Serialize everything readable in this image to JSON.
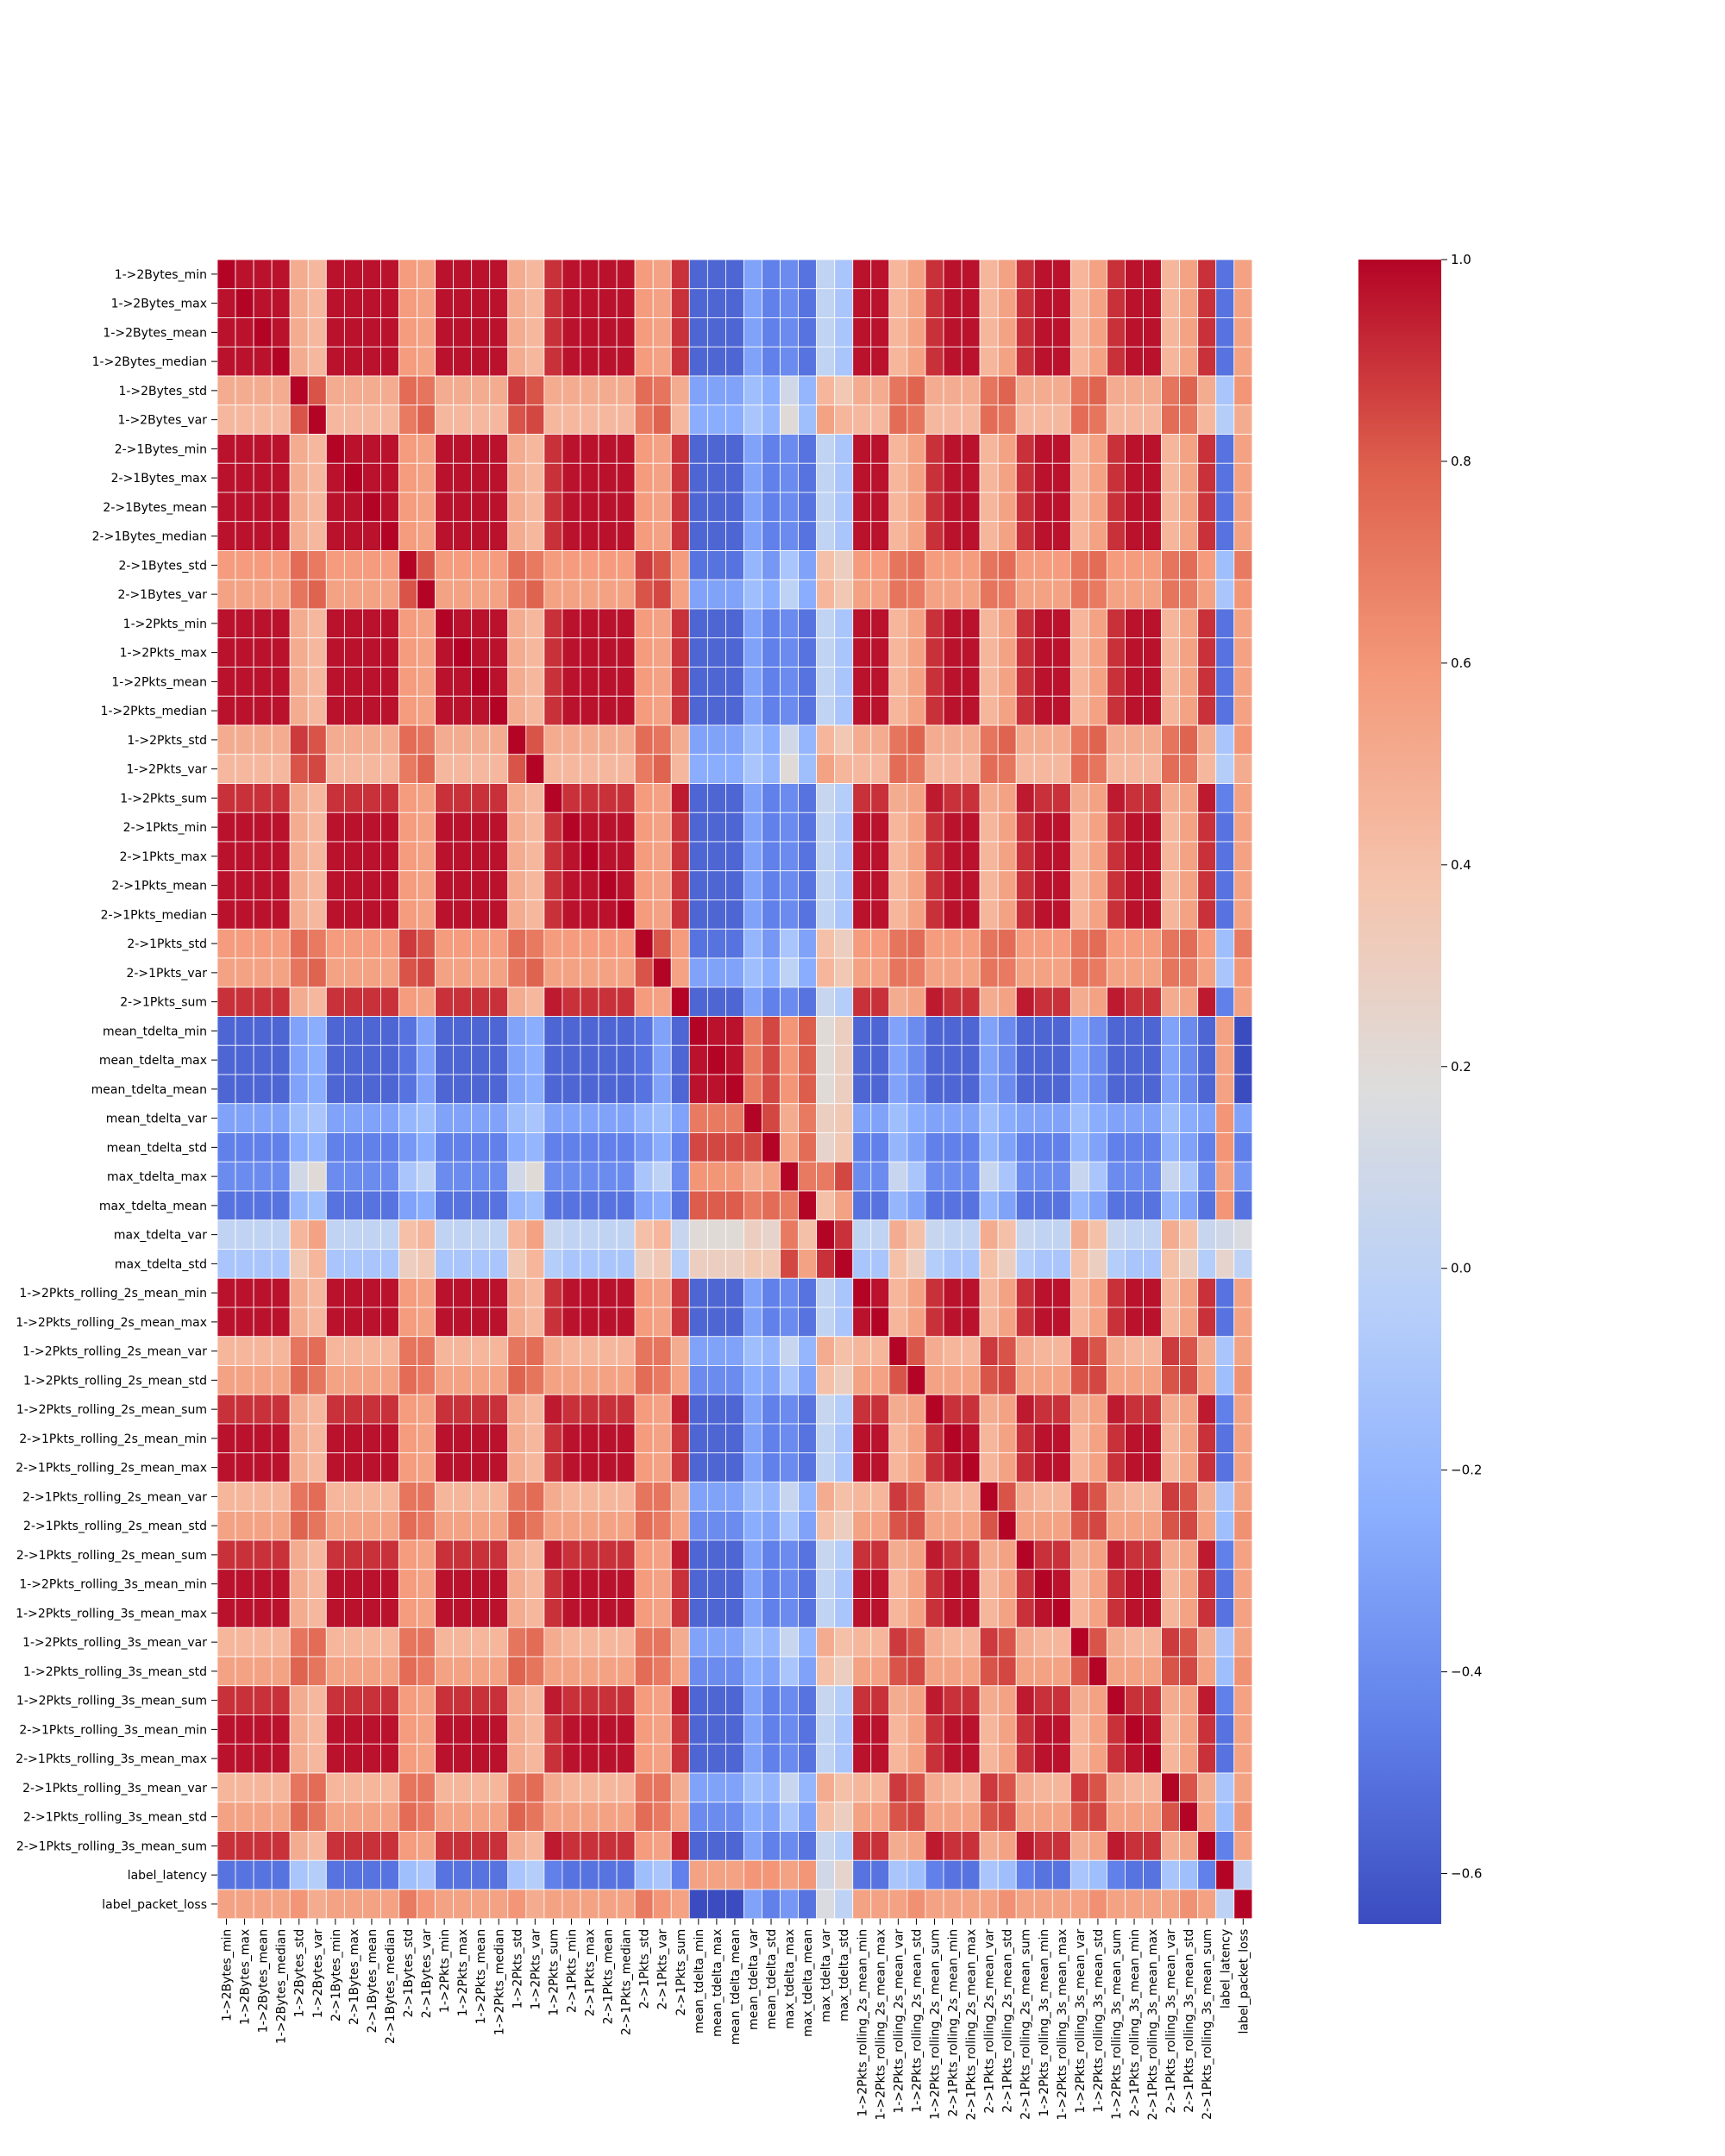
{
  "chart_data": {
    "type": "heatmap",
    "title": "",
    "xlabel": "",
    "ylabel": "",
    "colormap": "coolwarm",
    "vmin": -0.65,
    "vmax": 1.0,
    "colorbar_ticks": [
      {
        "value": 1.0,
        "label": "1.0"
      },
      {
        "value": 0.8,
        "label": "0.8"
      },
      {
        "value": 0.6,
        "label": "0.6"
      },
      {
        "value": 0.4,
        "label": "0.4"
      },
      {
        "value": 0.2,
        "label": "0.2"
      },
      {
        "value": 0.0,
        "label": "0.0"
      },
      {
        "value": -0.2,
        "label": "−0.2"
      },
      {
        "value": -0.4,
        "label": "−0.4"
      },
      {
        "value": -0.6,
        "label": "−0.6"
      }
    ],
    "labels": [
      "1->2Bytes_min",
      "1->2Bytes_max",
      "1->2Bytes_mean",
      "1->2Bytes_median",
      "1->2Bytes_std",
      "1->2Bytes_var",
      "2->1Bytes_min",
      "2->1Bytes_max",
      "2->1Bytes_mean",
      "2->1Bytes_median",
      "2->1Bytes_std",
      "2->1Bytes_var",
      "1->2Pkts_min",
      "1->2Pkts_max",
      "1->2Pkts_mean",
      "1->2Pkts_median",
      "1->2Pkts_std",
      "1->2Pkts_var",
      "1->2Pkts_sum",
      "2->1Pkts_min",
      "2->1Pkts_max",
      "2->1Pkts_mean",
      "2->1Pkts_median",
      "2->1Pkts_std",
      "2->1Pkts_var",
      "2->1Pkts_sum",
      "mean_tdelta_min",
      "mean_tdelta_max",
      "mean_tdelta_mean",
      "mean_tdelta_var",
      "mean_tdelta_std",
      "max_tdelta_max",
      "max_tdelta_mean",
      "max_tdelta_var",
      "max_tdelta_std",
      "1->2Pkts_rolling_2s_mean_min",
      "1->2Pkts_rolling_2s_mean_max",
      "1->2Pkts_rolling_2s_mean_var",
      "1->2Pkts_rolling_2s_mean_std",
      "1->2Pkts_rolling_2s_mean_sum",
      "2->1Pkts_rolling_2s_mean_min",
      "2->1Pkts_rolling_2s_mean_max",
      "2->1Pkts_rolling_2s_mean_var",
      "2->1Pkts_rolling_2s_mean_std",
      "2->1Pkts_rolling_2s_mean_sum",
      "1->2Pkts_rolling_3s_mean_min",
      "1->2Pkts_rolling_3s_mean_max",
      "1->2Pkts_rolling_3s_mean_var",
      "1->2Pkts_rolling_3s_mean_std",
      "1->2Pkts_rolling_3s_mean_sum",
      "2->1Pkts_rolling_3s_mean_min",
      "2->1Pkts_rolling_3s_mean_max",
      "2->1Pkts_rolling_3s_mean_var",
      "2->1Pkts_rolling_3s_mean_std",
      "2->1Pkts_rolling_3s_mean_sum",
      "label_latency",
      "label_packet_loss"
    ],
    "groups": [
      "a",
      "a",
      "a",
      "a",
      "b",
      "c",
      "a",
      "a",
      "a",
      "a",
      "d",
      "e",
      "a",
      "a",
      "a",
      "a",
      "b",
      "c",
      "s",
      "a",
      "a",
      "a",
      "a",
      "d",
      "e",
      "s",
      "t1",
      "t1",
      "t1",
      "t2",
      "t3",
      "m1",
      "m2",
      "mv",
      "ms",
      "a",
      "a",
      "rv",
      "rs",
      "s",
      "a",
      "a",
      "rv",
      "rs",
      "s",
      "a",
      "a",
      "rv",
      "rs",
      "s",
      "a",
      "a",
      "rv",
      "rs",
      "s",
      "L",
      "P"
    ],
    "group_correlations": {
      "a-a": 0.97,
      "a-b": 0.5,
      "a-c": 0.44,
      "a-d": 0.58,
      "a-e": 0.55,
      "a-s": 0.9,
      "a-t1": -0.55,
      "a-t2": -0.3,
      "a-t3": -0.45,
      "a-m1": -0.4,
      "a-m2": -0.5,
      "a-mv": 0.02,
      "a-ms": -0.1,
      "a-rv": 0.45,
      "a-rs": 0.55,
      "a-L": -0.5,
      "a-P": 0.55,
      "b-b": 0.88,
      "b-c": 0.82,
      "b-d": 0.75,
      "b-e": 0.72,
      "b-s": 0.5,
      "b-t1": -0.3,
      "b-t2": -0.15,
      "b-t3": -0.25,
      "b-m1": 0.1,
      "b-m2": -0.2,
      "b-mv": 0.45,
      "b-ms": 0.35,
      "b-rv": 0.72,
      "b-rs": 0.78,
      "b-L": -0.1,
      "b-P": 0.6,
      "c-c": 0.85,
      "c-d": 0.7,
      "c-e": 0.78,
      "c-s": 0.44,
      "c-t1": -0.25,
      "c-t2": -0.1,
      "c-t3": -0.2,
      "c-m1": 0.2,
      "c-m2": -0.15,
      "c-mv": 0.55,
      "c-ms": 0.45,
      "c-rv": 0.75,
      "c-rs": 0.72,
      "c-L": -0.05,
      "c-P": 0.5,
      "d-d": 0.88,
      "d-e": 0.82,
      "d-s": 0.58,
      "d-t1": -0.5,
      "d-t2": -0.2,
      "d-t3": -0.35,
      "d-m1": -0.1,
      "d-m2": -0.3,
      "d-mv": 0.4,
      "d-ms": 0.3,
      "d-rv": 0.72,
      "d-rs": 0.75,
      "d-L": -0.15,
      "d-P": 0.7,
      "e-e": 0.85,
      "e-s": 0.55,
      "e-t1": -0.3,
      "e-t2": -0.15,
      "e-t3": -0.25,
      "e-m1": 0.0,
      "e-m2": -0.25,
      "e-mv": 0.45,
      "e-ms": 0.35,
      "e-rv": 0.72,
      "e-rs": 0.7,
      "e-L": -0.1,
      "e-P": 0.6,
      "s-s": 0.95,
      "s-t1": -0.55,
      "s-t2": -0.3,
      "s-t3": -0.45,
      "s-m1": -0.4,
      "s-m2": -0.5,
      "s-mv": 0.05,
      "s-ms": -0.05,
      "s-rv": 0.5,
      "s-rs": 0.55,
      "s-L": -0.45,
      "s-P": 0.55,
      "t1-t1": 0.97,
      "t1-t2": 0.7,
      "t1-t3": 0.85,
      "t1-m1": 0.6,
      "t1-m2": 0.8,
      "t1-mv": 0.2,
      "t1-ms": 0.3,
      "t1-rv": -0.3,
      "t1-rs": -0.4,
      "t1-L": 0.55,
      "t1-P": -0.65,
      "t2-t2": 0.98,
      "t2-t3": 0.85,
      "t2-m1": 0.5,
      "t2-m2": 0.7,
      "t2-mv": 0.3,
      "t2-ms": 0.35,
      "t2-rv": -0.15,
      "t2-rs": -0.25,
      "t2-L": 0.6,
      "t2-P": -0.3,
      "t3-t3": 0.98,
      "t3-m1": 0.55,
      "t3-m2": 0.75,
      "t3-mv": 0.25,
      "t3-ms": 0.35,
      "t3-rv": -0.2,
      "t3-rs": -0.3,
      "t3-L": 0.6,
      "t3-P": -0.45,
      "m1-m1": 1.0,
      "m1-m2": 0.7,
      "m1-mv": 0.7,
      "m1-ms": 0.85,
      "m1-rv": 0.05,
      "m1-rs": -0.1,
      "m1-L": 0.55,
      "m1-P": -0.35,
      "m2-m2": 1.0,
      "m2-mv": 0.4,
      "m2-ms": 0.55,
      "m2-rv": -0.2,
      "m2-rs": -0.3,
      "m2-L": 0.6,
      "m2-P": -0.5,
      "mv-mv": 1.0,
      "mv-ms": 0.9,
      "mv-rv": 0.5,
      "mv-rs": 0.4,
      "mv-L": 0.1,
      "mv-P": 0.15,
      "ms-ms": 1.0,
      "ms-rv": 0.4,
      "ms-rs": 0.3,
      "ms-L": 0.25,
      "ms-P": 0.0,
      "rv-rv": 0.88,
      "rv-rs": 0.82,
      "rv-L": -0.1,
      "rv-P": 0.55,
      "rs-rs": 0.85,
      "rs-L": -0.15,
      "rs-P": 0.62,
      "L-L": 1.0,
      "L-P": 0.0,
      "P-P": 1.0
    }
  }
}
